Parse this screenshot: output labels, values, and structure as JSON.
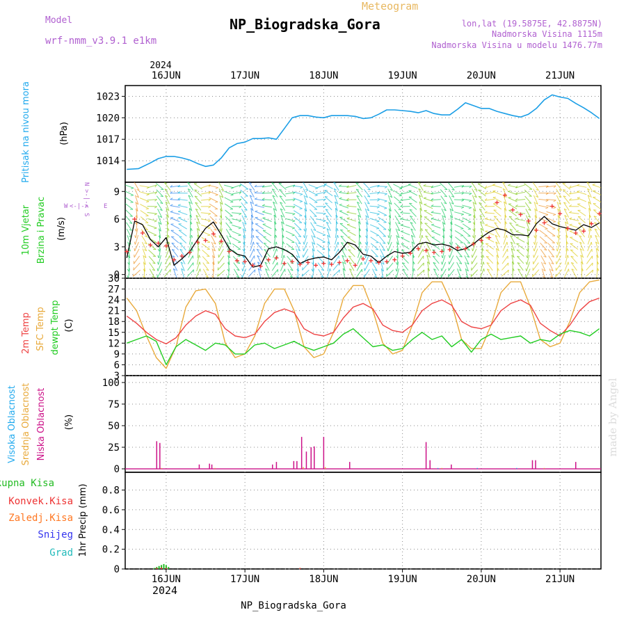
{
  "header": {
    "model_label": "Model",
    "model_name": "wrf-nmm_v3.9.1 e1km",
    "title": "NP_Biogradska_Gora",
    "meteogram": "Meteogram",
    "lonlat": "lon,lat (19.5875E, 42.8875N)",
    "altitude": "Nadmorska Visina 1115m",
    "model_altitude": "Nadmorska Visina u modelu 1476.77m",
    "footer_station": "NP_Biogradska_Gora",
    "watermark": "made by Angel"
  },
  "colors": {
    "pressure": "#1a9ee6",
    "wind_speed": "#000000",
    "wind_gust": "#ee3333",
    "temp_2m": "#ee4444",
    "temp_sfc": "#e8a93a",
    "dewpoint": "#22cc22",
    "cloud_high": "#22aaee",
    "cloud_mid": "#e8a93a",
    "cloud_low": "#cc1188",
    "precip_total": "#22bb22",
    "precip_conv": "#ee3333",
    "precip_freezing": "#ff7722",
    "snow": "#3333ee",
    "hail": "#22bbbb",
    "label_purple": "#b060d0",
    "title_orange": "#e8b860",
    "grid": "#888888"
  },
  "chart_data": [
    {
      "type": "line",
      "panel": "pressure",
      "ylabel_parts": [
        "Pritisak na nivou mora"
      ],
      "unit": "(hPa)",
      "ylim": [
        1011,
        1024.5
      ],
      "yticks": [
        1014,
        1017,
        1020,
        1023
      ],
      "x_unit": "days since 2024-06-16 00 UTC",
      "x_ticks": [
        "16JUN",
        "17JUN",
        "18JUN",
        "19JUN",
        "20JUN",
        "21JUN"
      ],
      "x_top_year": "2024",
      "series": [
        {
          "key": "pressure",
          "x": [
            -0.5,
            -0.35,
            -0.2,
            -0.1,
            0,
            0.1,
            0.2,
            0.3,
            0.4,
            0.5,
            0.6,
            0.7,
            0.8,
            0.9,
            1.0,
            1.1,
            1.2,
            1.3,
            1.4,
            1.5,
            1.6,
            1.7,
            1.8,
            1.9,
            2.0,
            2.1,
            2.2,
            2.3,
            2.4,
            2.5,
            2.6,
            2.7,
            2.8,
            2.9,
            3.0,
            3.1,
            3.2,
            3.3,
            3.4,
            3.5,
            3.6,
            3.7,
            3.8,
            3.9,
            4.0,
            4.1,
            4.2,
            4.3,
            4.4,
            4.5,
            4.6,
            4.7,
            4.8,
            4.9,
            5.0,
            5.1,
            5.2,
            5.3,
            5.4,
            5.5
          ],
          "values": [
            1012.8,
            1012.9,
            1013.7,
            1014.3,
            1014.6,
            1014.6,
            1014.4,
            1014.1,
            1013.6,
            1013.2,
            1013.4,
            1014.4,
            1015.8,
            1016.4,
            1016.6,
            1017.1,
            1017.1,
            1017.2,
            1017.0,
            1018.5,
            1020.0,
            1020.3,
            1020.3,
            1020.1,
            1020.0,
            1020.3,
            1020.3,
            1020.3,
            1020.2,
            1019.9,
            1020.0,
            1020.5,
            1021.1,
            1021.1,
            1021.0,
            1020.9,
            1020.7,
            1021.0,
            1020.6,
            1020.4,
            1020.4,
            1021.2,
            1022.1,
            1021.7,
            1021.3,
            1021.3,
            1020.9,
            1020.6,
            1020.3,
            1020.1,
            1020.5,
            1021.3,
            1022.5,
            1023.2,
            1022.9,
            1022.7,
            1022.0,
            1021.4,
            1020.7,
            1019.9
          ]
        }
      ]
    },
    {
      "type": "line",
      "panel": "wind",
      "ylabel_parts": [
        "10m Vjetar",
        "Brzina i Pravac"
      ],
      "unit": "(m/s)",
      "compass": "N",
      "ylim": [
        -0.4,
        10
      ],
      "yticks": [
        0,
        3,
        6,
        9
      ],
      "series": [
        {
          "key": "wind_speed",
          "x": [
            -0.5,
            -0.4,
            -0.3,
            -0.2,
            -0.1,
            0,
            0.1,
            0.2,
            0.3,
            0.4,
            0.5,
            0.6,
            0.7,
            0.8,
            0.9,
            1.0,
            1.1,
            1.2,
            1.3,
            1.4,
            1.5,
            1.6,
            1.7,
            1.8,
            1.9,
            2.0,
            2.1,
            2.2,
            2.3,
            2.4,
            2.5,
            2.6,
            2.7,
            2.8,
            2.9,
            3.0,
            3.1,
            3.2,
            3.3,
            3.4,
            3.5,
            3.6,
            3.7,
            3.8,
            3.9,
            4.0,
            4.1,
            4.2,
            4.3,
            4.4,
            4.5,
            4.6,
            4.7,
            4.8,
            4.9,
            5.0,
            5.1,
            5.2,
            5.3,
            5.4,
            5.5
          ],
          "values": [
            1.8,
            5.8,
            5.4,
            3.8,
            3.0,
            4.0,
            1.0,
            1.7,
            2.5,
            3.8,
            5.0,
            5.7,
            4.3,
            2.8,
            2.2,
            2.0,
            0.8,
            1.0,
            2.8,
            3.0,
            2.7,
            2.2,
            1.2,
            1.6,
            1.8,
            1.9,
            1.6,
            2.4,
            3.5,
            3.2,
            2.2,
            2.0,
            1.3,
            2.0,
            2.5,
            2.3,
            2.4,
            3.3,
            3.5,
            3.2,
            3.3,
            3.1,
            2.6,
            2.8,
            3.3,
            4.0,
            4.6,
            5.0,
            4.8,
            4.3,
            4.3,
            4.2,
            5.5,
            6.3,
            5.5,
            5.2,
            5.0,
            4.8,
            5.4,
            5.1,
            5.6
          ]
        },
        {
          "key": "wind_gust",
          "x": [
            -0.5,
            -0.4,
            -0.3,
            -0.2,
            -0.1,
            0,
            0.1,
            0.2,
            0.3,
            0.4,
            0.5,
            0.6,
            0.7,
            0.8,
            0.9,
            1.0,
            1.1,
            1.2,
            1.3,
            1.4,
            1.5,
            1.6,
            1.7,
            1.8,
            1.9,
            2.0,
            2.1,
            2.2,
            2.3,
            2.4,
            2.5,
            2.6,
            2.7,
            2.8,
            2.9,
            3.0,
            3.1,
            3.2,
            3.3,
            3.4,
            3.5,
            3.6,
            3.7,
            3.8,
            3.9,
            4.0,
            4.1,
            4.2,
            4.3,
            4.4,
            4.5,
            4.6,
            4.7,
            4.8,
            4.9,
            5.0,
            5.1,
            5.2,
            5.3,
            5.4,
            5.5
          ],
          "values": [
            2.5,
            6.0,
            4.5,
            3.2,
            3.4,
            3.1,
            1.6,
            2.0,
            2.4,
            3.5,
            3.7,
            4.4,
            3.6,
            2.5,
            1.5,
            1.4,
            1.0,
            0.9,
            1.6,
            1.8,
            1.2,
            1.4,
            1.1,
            1.3,
            1.0,
            1.2,
            1.1,
            1.3,
            1.5,
            1.0,
            1.7,
            1.5,
            1.3,
            1.4,
            1.6,
            2.0,
            2.3,
            2.8,
            2.6,
            2.4,
            2.5,
            2.7,
            2.9,
            2.8,
            3.3,
            3.7,
            4.0,
            7.8,
            8.6,
            7.0,
            6.5,
            5.8,
            4.8,
            5.6,
            7.4,
            6.6,
            5.0,
            4.5,
            4.7,
            5.5,
            6.6
          ]
        }
      ]
    },
    {
      "type": "line",
      "panel": "temperature",
      "ylabel_parts": [
        "2m Temp",
        "SFC Temp",
        "dewpt Temp"
      ],
      "unit": "(C)",
      "ylim": [
        3,
        30
      ],
      "yticks": [
        3,
        6,
        9,
        12,
        15,
        18,
        21,
        24,
        27,
        30
      ],
      "series": [
        {
          "key": "temp_2m",
          "x": [
            -0.5,
            -0.375,
            -0.25,
            -0.125,
            0,
            0.125,
            0.25,
            0.375,
            0.5,
            0.625,
            0.75,
            0.875,
            1.0,
            1.125,
            1.25,
            1.375,
            1.5,
            1.625,
            1.75,
            1.875,
            2.0,
            2.125,
            2.25,
            2.375,
            2.5,
            2.625,
            2.75,
            2.875,
            3.0,
            3.125,
            3.25,
            3.375,
            3.5,
            3.625,
            3.75,
            3.875,
            4.0,
            4.125,
            4.25,
            4.375,
            4.5,
            4.625,
            4.75,
            4.875,
            5.0,
            5.125,
            5.25,
            5.375,
            5.5
          ],
          "values": [
            19.5,
            17.5,
            15.0,
            13.0,
            11.8,
            13.5,
            17.0,
            19.5,
            21.0,
            20.0,
            16.0,
            14.0,
            13.5,
            14.5,
            18.0,
            20.5,
            21.5,
            20.5,
            16.0,
            14.5,
            14.0,
            15.0,
            19.0,
            22.0,
            23.0,
            21.5,
            17.0,
            15.5,
            15.0,
            17.0,
            21.0,
            23.0,
            24.0,
            22.5,
            18.0,
            16.5,
            16.0,
            17.0,
            21.0,
            23.0,
            24.0,
            22.5,
            17.5,
            15.5,
            14.0,
            17.0,
            21.0,
            23.5,
            24.5
          ]
        },
        {
          "key": "temp_sfc",
          "x": [
            -0.5,
            -0.375,
            -0.25,
            -0.125,
            0,
            0.125,
            0.25,
            0.375,
            0.5,
            0.625,
            0.75,
            0.875,
            1.0,
            1.125,
            1.25,
            1.375,
            1.5,
            1.625,
            1.75,
            1.875,
            2.0,
            2.125,
            2.25,
            2.375,
            2.5,
            2.625,
            2.75,
            2.875,
            3.0,
            3.125,
            3.25,
            3.375,
            3.5,
            3.625,
            3.75,
            3.875,
            4.0,
            4.125,
            4.25,
            4.375,
            4.5,
            4.625,
            4.75,
            4.875,
            5.0,
            5.125,
            5.25,
            5.375,
            5.5
          ],
          "values": [
            24.5,
            21.0,
            14.0,
            8.0,
            5.0,
            11.0,
            22.0,
            26.5,
            27.0,
            23.0,
            12.0,
            8.0,
            9.0,
            14.0,
            23.0,
            27.0,
            27.0,
            21.0,
            11.0,
            8.0,
            9.0,
            15.0,
            24.5,
            28.0,
            28.0,
            21.0,
            12.0,
            9.0,
            10.0,
            17.0,
            26.0,
            29.0,
            29.0,
            23.0,
            13.0,
            10.5,
            10.5,
            17.0,
            26.0,
            29.0,
            29.0,
            22.0,
            13.0,
            11.0,
            12.0,
            18.0,
            26.0,
            29.0,
            29.5
          ]
        },
        {
          "key": "dewpoint",
          "x": [
            -0.5,
            -0.375,
            -0.25,
            -0.125,
            0,
            0.125,
            0.25,
            0.375,
            0.5,
            0.625,
            0.75,
            0.875,
            1.0,
            1.125,
            1.25,
            1.375,
            1.5,
            1.625,
            1.75,
            1.875,
            2.0,
            2.125,
            2.25,
            2.375,
            2.5,
            2.625,
            2.75,
            2.875,
            3.0,
            3.125,
            3.25,
            3.375,
            3.5,
            3.625,
            3.75,
            3.875,
            4.0,
            4.125,
            4.25,
            4.375,
            4.5,
            4.625,
            4.75,
            4.875,
            5.0,
            5.125,
            5.25,
            5.375,
            5.5
          ],
          "values": [
            12.0,
            13.0,
            14.0,
            12.5,
            6.0,
            11.0,
            13.0,
            11.5,
            10.0,
            12.0,
            11.5,
            9.0,
            9.0,
            11.5,
            12.0,
            10.5,
            11.5,
            12.5,
            11.0,
            10.0,
            11.0,
            12.0,
            14.5,
            16.0,
            13.5,
            11.0,
            11.5,
            10.0,
            10.5,
            13.0,
            15.0,
            13.0,
            14.0,
            11.0,
            13.0,
            9.5,
            13.0,
            14.5,
            13.0,
            13.5,
            14.0,
            12.0,
            13.0,
            12.5,
            14.5,
            15.5,
            15.0,
            14.0,
            16.0
          ]
        }
      ]
    },
    {
      "type": "bar",
      "panel": "clouds",
      "ylabel_parts": [
        "Visoka Oblacnost",
        "Srednja Oblacnost",
        "Niska Oblacnost"
      ],
      "unit": "(%)",
      "ylim": [
        -4,
        108
      ],
      "yticks": [
        0,
        25,
        50,
        75,
        100
      ],
      "series": [
        {
          "key": "cloud_low",
          "x": [
            -0.12,
            -0.08,
            0.42,
            0.55,
            0.58,
            1.35,
            1.4,
            1.62,
            1.66,
            1.72,
            1.78,
            1.84,
            1.88,
            2.0,
            2.33,
            3.3,
            3.35,
            3.62,
            4.65,
            4.69,
            5.2
          ],
          "values": [
            32,
            30,
            5,
            6,
            5,
            5,
            8,
            9,
            9,
            37,
            20,
            25,
            26,
            37,
            8,
            31,
            10,
            5,
            10,
            10,
            8
          ]
        },
        {
          "key": "cloud_mid",
          "x": [
            -0.06,
            0.62,
            1.74,
            2.02,
            3.5,
            4.8
          ],
          "values": [
            1,
            1,
            2,
            2,
            1,
            1
          ]
        },
        {
          "key": "cloud_high",
          "x": [
            3.45,
            3.95,
            4.45
          ],
          "values": [
            1,
            1,
            1
          ]
        }
      ]
    },
    {
      "type": "bar",
      "panel": "precip",
      "ylabel_parts": [
        "Ukupna Kisa",
        "Konvek.Kisa",
        "Zaledj.Kisa",
        "Snijeg",
        "Grad"
      ],
      "unit": "1hr Precip (mm)",
      "ylim": [
        0,
        0.98
      ],
      "yticks": [
        0,
        0.2,
        0.4,
        0.6,
        0.8
      ],
      "series": [
        {
          "key": "precip_total",
          "x": [
            -0.15,
            -0.12,
            -0.09,
            -0.06,
            -0.03,
            0.0,
            0.03,
            1.7
          ],
          "values": [
            0.01,
            0.02,
            0.03,
            0.04,
            0.05,
            0.04,
            0.02,
            0.01
          ]
        },
        {
          "key": "precip_conv",
          "x": [
            -0.12,
            -0.06,
            0.0,
            1.7
          ],
          "values": [
            0.01,
            0.015,
            0.01,
            0.01
          ]
        }
      ]
    }
  ]
}
